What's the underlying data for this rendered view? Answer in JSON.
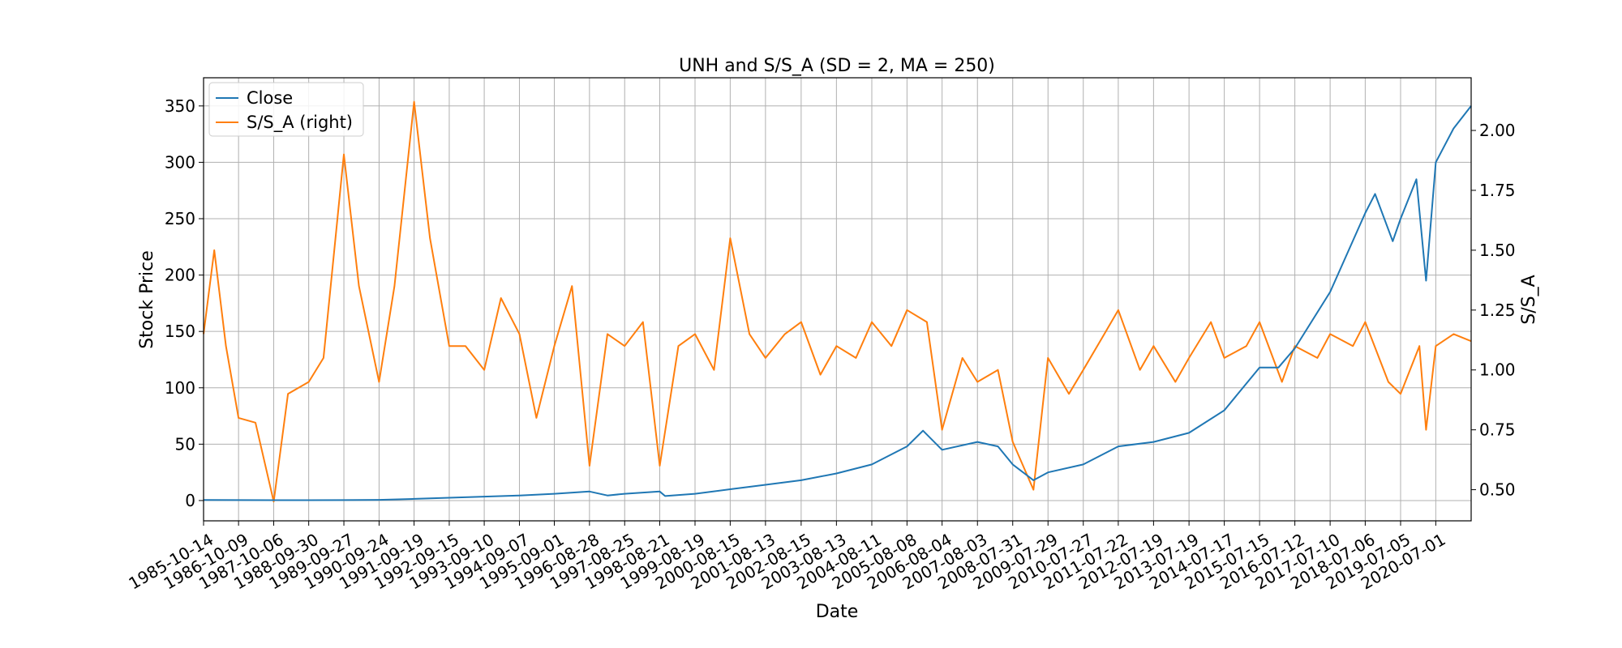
{
  "chart_data": {
    "type": "line",
    "title": "UNH and S/S_A (SD = 2, MA = 250)",
    "xlabel": "Date",
    "ylabel_left": "Stock Price",
    "ylabel_right": "S/S_A",
    "x_range": [
      "1985-10-14",
      "2021-06-30"
    ],
    "ylim_left": [
      -18,
      375
    ],
    "ylim_right": [
      0.37,
      2.22
    ],
    "grid": true,
    "legend_position": "top-left",
    "x_ticks": [
      "1985-10-14",
      "1986-10-09",
      "1987-10-06",
      "1988-09-30",
      "1989-09-27",
      "1990-09-24",
      "1991-09-19",
      "1992-09-15",
      "1993-09-10",
      "1994-09-07",
      "1995-09-01",
      "1996-08-28",
      "1997-08-25",
      "1998-08-21",
      "1999-08-19",
      "2000-08-15",
      "2001-08-13",
      "2002-08-15",
      "2003-08-13",
      "2004-08-11",
      "2005-08-08",
      "2006-08-04",
      "2007-08-03",
      "2008-07-31",
      "2009-07-29",
      "2010-07-27",
      "2011-07-22",
      "2012-07-19",
      "2013-07-19",
      "2014-07-17",
      "2015-07-15",
      "2016-07-12",
      "2017-07-10",
      "2018-07-06",
      "2019-07-05",
      "2020-07-01"
    ],
    "y_ticks_left": [
      0,
      50,
      100,
      150,
      200,
      250,
      300,
      350
    ],
    "y_ticks_left_labels": [
      "0",
      "50",
      "100",
      "150",
      "200",
      "250",
      "300",
      "350"
    ],
    "y_ticks_right": [
      0.5,
      0.75,
      1.0,
      1.25,
      1.5,
      1.75,
      2.0
    ],
    "y_ticks_right_labels": [
      "0.50",
      "0.75",
      "1.00",
      "1.25",
      "1.50",
      "1.75",
      "2.00"
    ],
    "series": [
      {
        "name": "Close",
        "axis": "left",
        "color": "#1f77b4",
        "points": [
          [
            "1985-10-14",
            0.5
          ],
          [
            "1987-10-06",
            0.3
          ],
          [
            "1989-09-27",
            0.4
          ],
          [
            "1990-09-24",
            0.6
          ],
          [
            "1991-09-19",
            1.5
          ],
          [
            "1992-09-15",
            2.5
          ],
          [
            "1993-09-10",
            3.5
          ],
          [
            "1994-09-07",
            4.5
          ],
          [
            "1995-09-01",
            6
          ],
          [
            "1996-08-28",
            8
          ],
          [
            "1997-03-01",
            4.5
          ],
          [
            "1997-08-25",
            6
          ],
          [
            "1998-08-21",
            8
          ],
          [
            "1998-10-15",
            4
          ],
          [
            "1999-08-19",
            6
          ],
          [
            "2000-08-15",
            10
          ],
          [
            "2001-08-13",
            14
          ],
          [
            "2002-08-15",
            18
          ],
          [
            "2003-08-13",
            24
          ],
          [
            "2004-08-11",
            32
          ],
          [
            "2005-08-08",
            48
          ],
          [
            "2006-01-20",
            62
          ],
          [
            "2006-08-04",
            45
          ],
          [
            "2007-08-03",
            52
          ],
          [
            "2008-03-01",
            48
          ],
          [
            "2008-07-31",
            32
          ],
          [
            "2009-03-01",
            18
          ],
          [
            "2009-07-29",
            25
          ],
          [
            "2010-07-27",
            32
          ],
          [
            "2011-07-22",
            48
          ],
          [
            "2012-07-19",
            52
          ],
          [
            "2013-07-19",
            60
          ],
          [
            "2014-07-17",
            80
          ],
          [
            "2015-07-15",
            118
          ],
          [
            "2016-01-25",
            118
          ],
          [
            "2016-07-12",
            135
          ],
          [
            "2017-07-10",
            185
          ],
          [
            "2018-07-06",
            255
          ],
          [
            "2018-10-15",
            272
          ],
          [
            "2019-04-15",
            230
          ],
          [
            "2019-07-05",
            250
          ],
          [
            "2019-12-15",
            285
          ],
          [
            "2020-03-23",
            195
          ],
          [
            "2020-07-01",
            300
          ],
          [
            "2020-12-31",
            330
          ],
          [
            "2021-06-30",
            350
          ]
        ]
      },
      {
        "name": "S/S_A (right)",
        "axis": "right",
        "color": "#ff7f0e",
        "points": [
          [
            "1985-10-14",
            1.15
          ],
          [
            "1986-02-01",
            1.5
          ],
          [
            "1986-06-01",
            1.1
          ],
          [
            "1986-10-09",
            0.8
          ],
          [
            "1987-04-01",
            0.78
          ],
          [
            "1987-10-06",
            0.45
          ],
          [
            "1988-03-01",
            0.9
          ],
          [
            "1988-09-30",
            0.95
          ],
          [
            "1989-03-01",
            1.05
          ],
          [
            "1989-09-27",
            1.9
          ],
          [
            "1990-03-01",
            1.35
          ],
          [
            "1990-09-24",
            0.95
          ],
          [
            "1991-03-01",
            1.35
          ],
          [
            "1991-09-19",
            2.12
          ],
          [
            "1992-03-01",
            1.55
          ],
          [
            "1992-09-15",
            1.1
          ],
          [
            "1993-03-01",
            1.1
          ],
          [
            "1993-09-10",
            1.0
          ],
          [
            "1994-03-01",
            1.3
          ],
          [
            "1994-09-07",
            1.15
          ],
          [
            "1995-03-01",
            0.8
          ],
          [
            "1995-09-01",
            1.1
          ],
          [
            "1996-03-01",
            1.35
          ],
          [
            "1996-08-28",
            0.6
          ],
          [
            "1997-03-01",
            1.15
          ],
          [
            "1997-08-25",
            1.1
          ],
          [
            "1998-03-01",
            1.2
          ],
          [
            "1998-08-21",
            0.6
          ],
          [
            "1999-03-01",
            1.1
          ],
          [
            "1999-08-19",
            1.15
          ],
          [
            "2000-03-01",
            1.0
          ],
          [
            "2000-08-15",
            1.55
          ],
          [
            "2001-03-01",
            1.15
          ],
          [
            "2001-08-13",
            1.05
          ],
          [
            "2002-03-01",
            1.15
          ],
          [
            "2002-08-15",
            1.2
          ],
          [
            "2003-03-01",
            0.98
          ],
          [
            "2003-08-13",
            1.1
          ],
          [
            "2004-03-01",
            1.05
          ],
          [
            "2004-08-11",
            1.2
          ],
          [
            "2005-03-01",
            1.1
          ],
          [
            "2005-08-08",
            1.25
          ],
          [
            "2006-03-01",
            1.2
          ],
          [
            "2006-08-04",
            0.75
          ],
          [
            "2007-03-01",
            1.05
          ],
          [
            "2007-08-03",
            0.95
          ],
          [
            "2008-03-01",
            1.0
          ],
          [
            "2008-07-31",
            0.7
          ],
          [
            "2009-03-01",
            0.5
          ],
          [
            "2009-07-29",
            1.05
          ],
          [
            "2010-03-01",
            0.9
          ],
          [
            "2010-07-27",
            1.0
          ],
          [
            "2011-03-01",
            1.15
          ],
          [
            "2011-07-22",
            1.25
          ],
          [
            "2012-03-01",
            1.0
          ],
          [
            "2012-07-19",
            1.1
          ],
          [
            "2013-03-01",
            0.95
          ],
          [
            "2013-07-19",
            1.05
          ],
          [
            "2014-03-01",
            1.2
          ],
          [
            "2014-07-17",
            1.05
          ],
          [
            "2015-03-01",
            1.1
          ],
          [
            "2015-07-15",
            1.2
          ],
          [
            "2016-03-01",
            0.95
          ],
          [
            "2016-07-12",
            1.1
          ],
          [
            "2017-03-01",
            1.05
          ],
          [
            "2017-07-10",
            1.15
          ],
          [
            "2018-03-01",
            1.1
          ],
          [
            "2018-07-06",
            1.2
          ],
          [
            "2019-03-01",
            0.95
          ],
          [
            "2019-07-05",
            0.9
          ],
          [
            "2020-01-15",
            1.1
          ],
          [
            "2020-03-23",
            0.75
          ],
          [
            "2020-07-01",
            1.1
          ],
          [
            "2021-01-01",
            1.15
          ],
          [
            "2021-06-30",
            1.12
          ]
        ]
      }
    ]
  }
}
